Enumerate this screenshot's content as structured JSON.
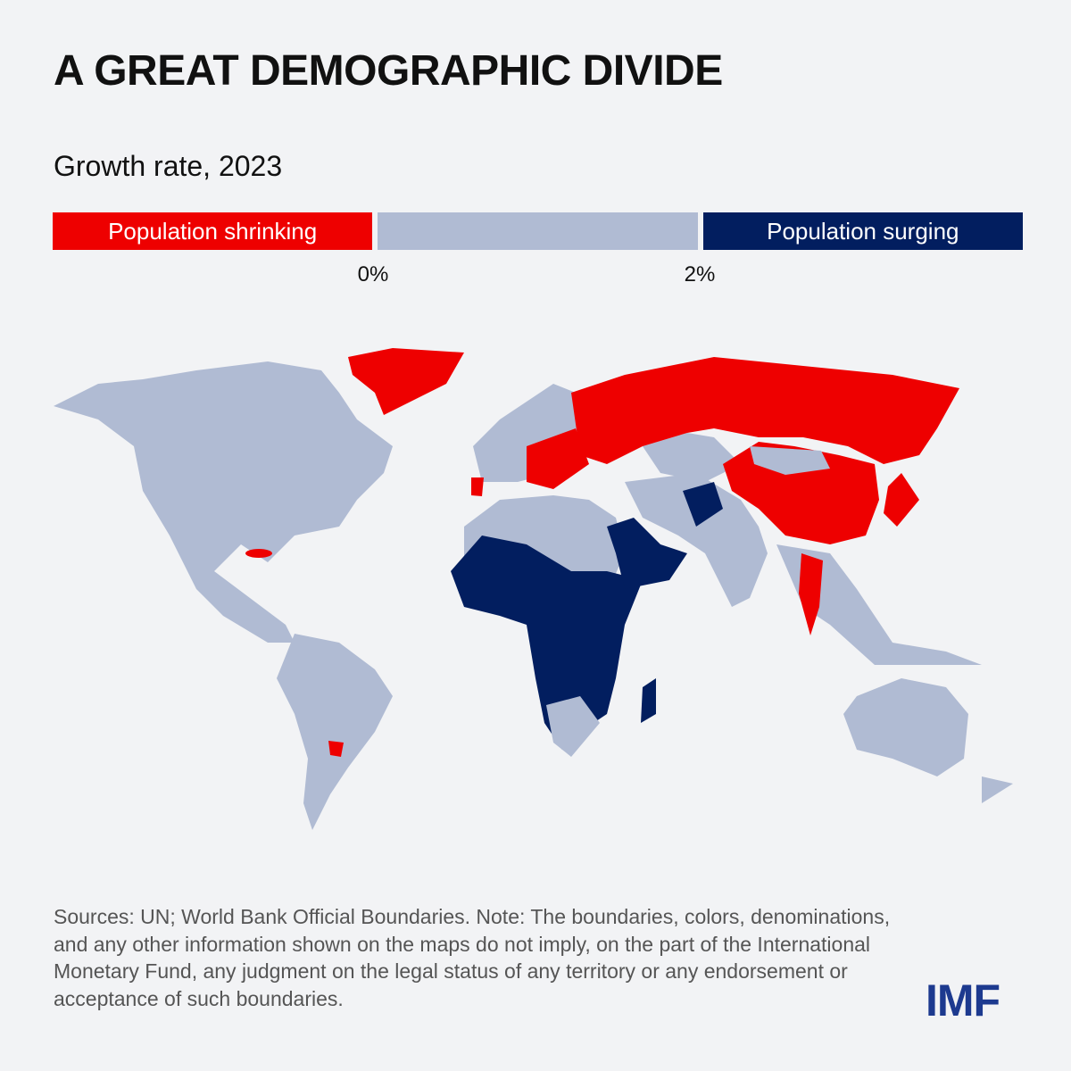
{
  "title": "A GREAT DEMOGRAPHIC DIVIDE",
  "subtitle": "Growth rate, 2023",
  "legend": {
    "segments": [
      {
        "label": "Population shrinking",
        "color": "#ee0000"
      },
      {
        "label": "",
        "color": "#b0bbd3"
      },
      {
        "label": "Population surging",
        "color": "#021e5f"
      }
    ],
    "ticks": [
      "0%",
      "2%"
    ]
  },
  "map": {
    "categories": {
      "shrinking": "#ee0000",
      "moderate": "#b0bbd3",
      "surging": "#021e5f"
    }
  },
  "footer": "Sources: UN; World Bank Official Boundaries. Note: The boundaries, colors, denominations, and any other information shown on the maps do not imply, on the part of the International Monetary Fund, any judgment on the legal status of any territory or any endorsement or acceptance of such boundaries.",
  "logo": "IMF"
}
